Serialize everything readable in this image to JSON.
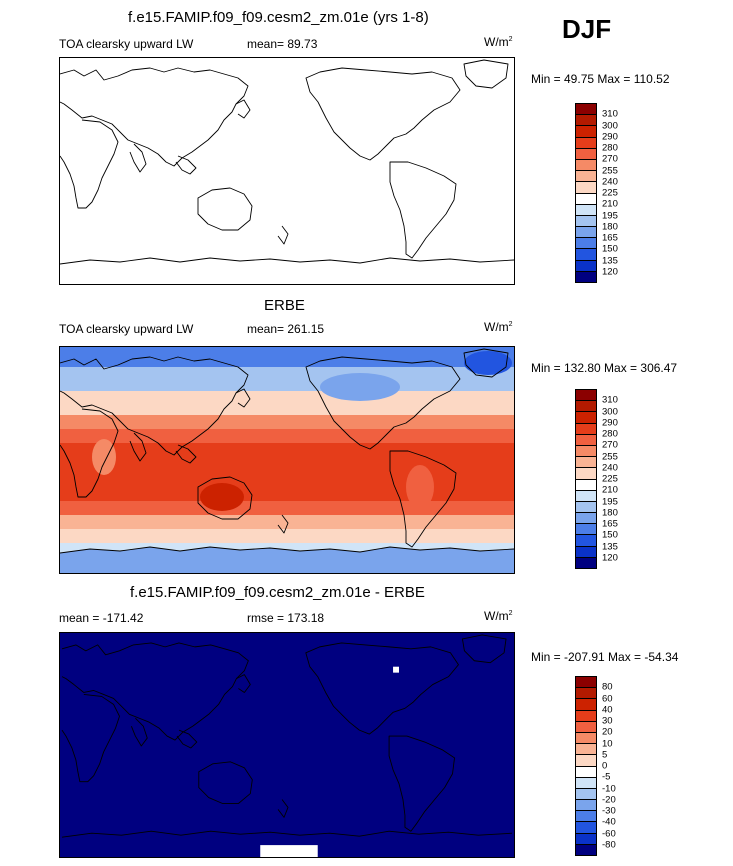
{
  "season": "DJF",
  "panels": [
    {
      "title": "f.e15.FAMIP.f09_f09.cesm2_zm.01e (yrs 1-8)",
      "variable": "TOA clearsky upward LW",
      "stat_label": "mean=  89.73",
      "units": "W/m",
      "units_sup": "2",
      "range_label": "Min =  49.75 Max = 110.52"
    },
    {
      "title": "ERBE",
      "variable": "TOA clearsky upward LW",
      "stat_label": "mean= 261.15",
      "units": "W/m",
      "units_sup": "2",
      "range_label": "Min = 132.80 Max = 306.47"
    },
    {
      "title": "f.e15.FAMIP.f09_f09.cesm2_zm.01e - ERBE",
      "variable": "mean = -171.42",
      "stat_label": "rmse = 173.18",
      "units": "W/m",
      "units_sup": "2",
      "range_label": "Min = -207.91 Max = -54.34"
    }
  ],
  "colorbars": {
    "absolute": {
      "labels": [
        "310",
        "300",
        "290",
        "280",
        "270",
        "255",
        "240",
        "225",
        "210",
        "195",
        "180",
        "165",
        "150",
        "135",
        "120"
      ],
      "colors": [
        "#8b0000",
        "#b31a00",
        "#cc2200",
        "#e53d1a",
        "#f06040",
        "#f58a66",
        "#f9b394",
        "#fcd8c4",
        "#ffffff",
        "#d0e4f7",
        "#a4c4f0",
        "#7aa4ec",
        "#4c7ee8",
        "#2255e0",
        "#0a32c8",
        "#000080"
      ]
    },
    "difference": {
      "labels": [
        "80",
        "60",
        "40",
        "30",
        "20",
        "10",
        "5",
        "0",
        "-5",
        "-10",
        "-20",
        "-30",
        "-40",
        "-60",
        "-80"
      ],
      "colors": [
        "#8b0000",
        "#b31a00",
        "#cc2200",
        "#e53d1a",
        "#f06040",
        "#f58a66",
        "#f9b394",
        "#fcd8c4",
        "#ffffff",
        "#d0e4f7",
        "#a4c4f0",
        "#7aa4ec",
        "#4c7ee8",
        "#2255e0",
        "#0a32c8",
        "#000080"
      ]
    }
  },
  "colors": {
    "model_field": "#ffffff",
    "diff_field": "#000080",
    "tropics": "#e83d1c",
    "polar_cold": "#2a66dd",
    "coastline": "#000000"
  }
}
